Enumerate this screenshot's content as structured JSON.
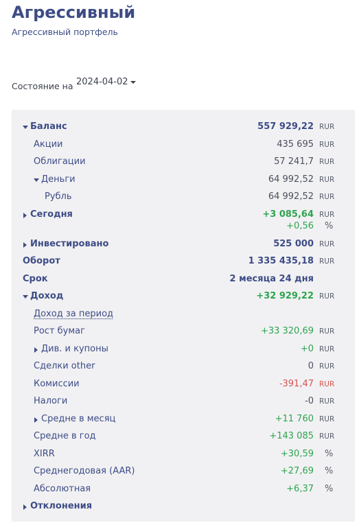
{
  "header": {
    "title": "Агрессивный",
    "subtitle": "Агрессивный портфель"
  },
  "state": {
    "label": "Состояние на",
    "date": "2024-04-02"
  },
  "panel": {
    "rows": [
      {
        "label": "Баланс",
        "lines": [
          {
            "value": "557 929,22",
            "unit": "RUR"
          }
        ]
      },
      {
        "label": "Акции",
        "lines": [
          {
            "value": "435 695",
            "unit": "RUR"
          }
        ]
      },
      {
        "label": "Облигации",
        "lines": [
          {
            "value": "57 241,7",
            "unit": "RUR"
          }
        ]
      },
      {
        "label": "Деньги",
        "lines": [
          {
            "value": "64 992,52",
            "unit": "RUR"
          }
        ]
      },
      {
        "label": "Рубль",
        "lines": [
          {
            "value": "64 992,52",
            "unit": "RUR"
          }
        ]
      },
      {
        "label": "Сегодня",
        "lines": [
          {
            "value": "+3 085,64",
            "unit": "RUR"
          },
          {
            "value": "+0,56",
            "unit": "%"
          }
        ]
      },
      {
        "label": "Инвестировано",
        "lines": [
          {
            "value": "525 000",
            "unit": "RUR"
          }
        ]
      },
      {
        "label": "Оборот",
        "lines": [
          {
            "value": "1 335 435,18",
            "unit": "RUR"
          }
        ]
      },
      {
        "label": "Срок",
        "lines": [
          {
            "value": "2 месяца 24 дня"
          }
        ]
      },
      {
        "label": "Доход",
        "lines": [
          {
            "value": "+32 929,22",
            "unit": "RUR"
          }
        ]
      },
      {
        "label": "Доход за период"
      },
      {
        "label": "Рост бумаг",
        "lines": [
          {
            "value": "+33 320,69",
            "unit": "RUR"
          }
        ]
      },
      {
        "label": "Див. и купоны",
        "lines": [
          {
            "value": "+0",
            "unit": "RUR"
          }
        ]
      },
      {
        "label": "Сделки other",
        "lines": [
          {
            "value": "0",
            "unit": "RUR"
          }
        ]
      },
      {
        "label": "Комиссии",
        "lines": [
          {
            "value": "-391,47",
            "unit": "RUR"
          }
        ]
      },
      {
        "label": "Налоги",
        "lines": [
          {
            "value": "-0",
            "unit": "RUR"
          }
        ]
      },
      {
        "label": "Средне в месяц",
        "lines": [
          {
            "value": "+11 760",
            "unit": "RUR"
          }
        ]
      },
      {
        "label": "Средне в год",
        "lines": [
          {
            "value": "+143 085",
            "unit": "RUR"
          }
        ]
      },
      {
        "label": "XIRR",
        "lines": [
          {
            "value": "+30,59",
            "unit": "%"
          }
        ]
      },
      {
        "label": "Среднегодовая (AAR)",
        "lines": [
          {
            "value": "+27,69",
            "unit": "%"
          }
        ]
      },
      {
        "label": "Абсолютная",
        "lines": [
          {
            "value": "+6,37",
            "unit": "%"
          }
        ]
      },
      {
        "label": "Отклонения"
      }
    ]
  }
}
